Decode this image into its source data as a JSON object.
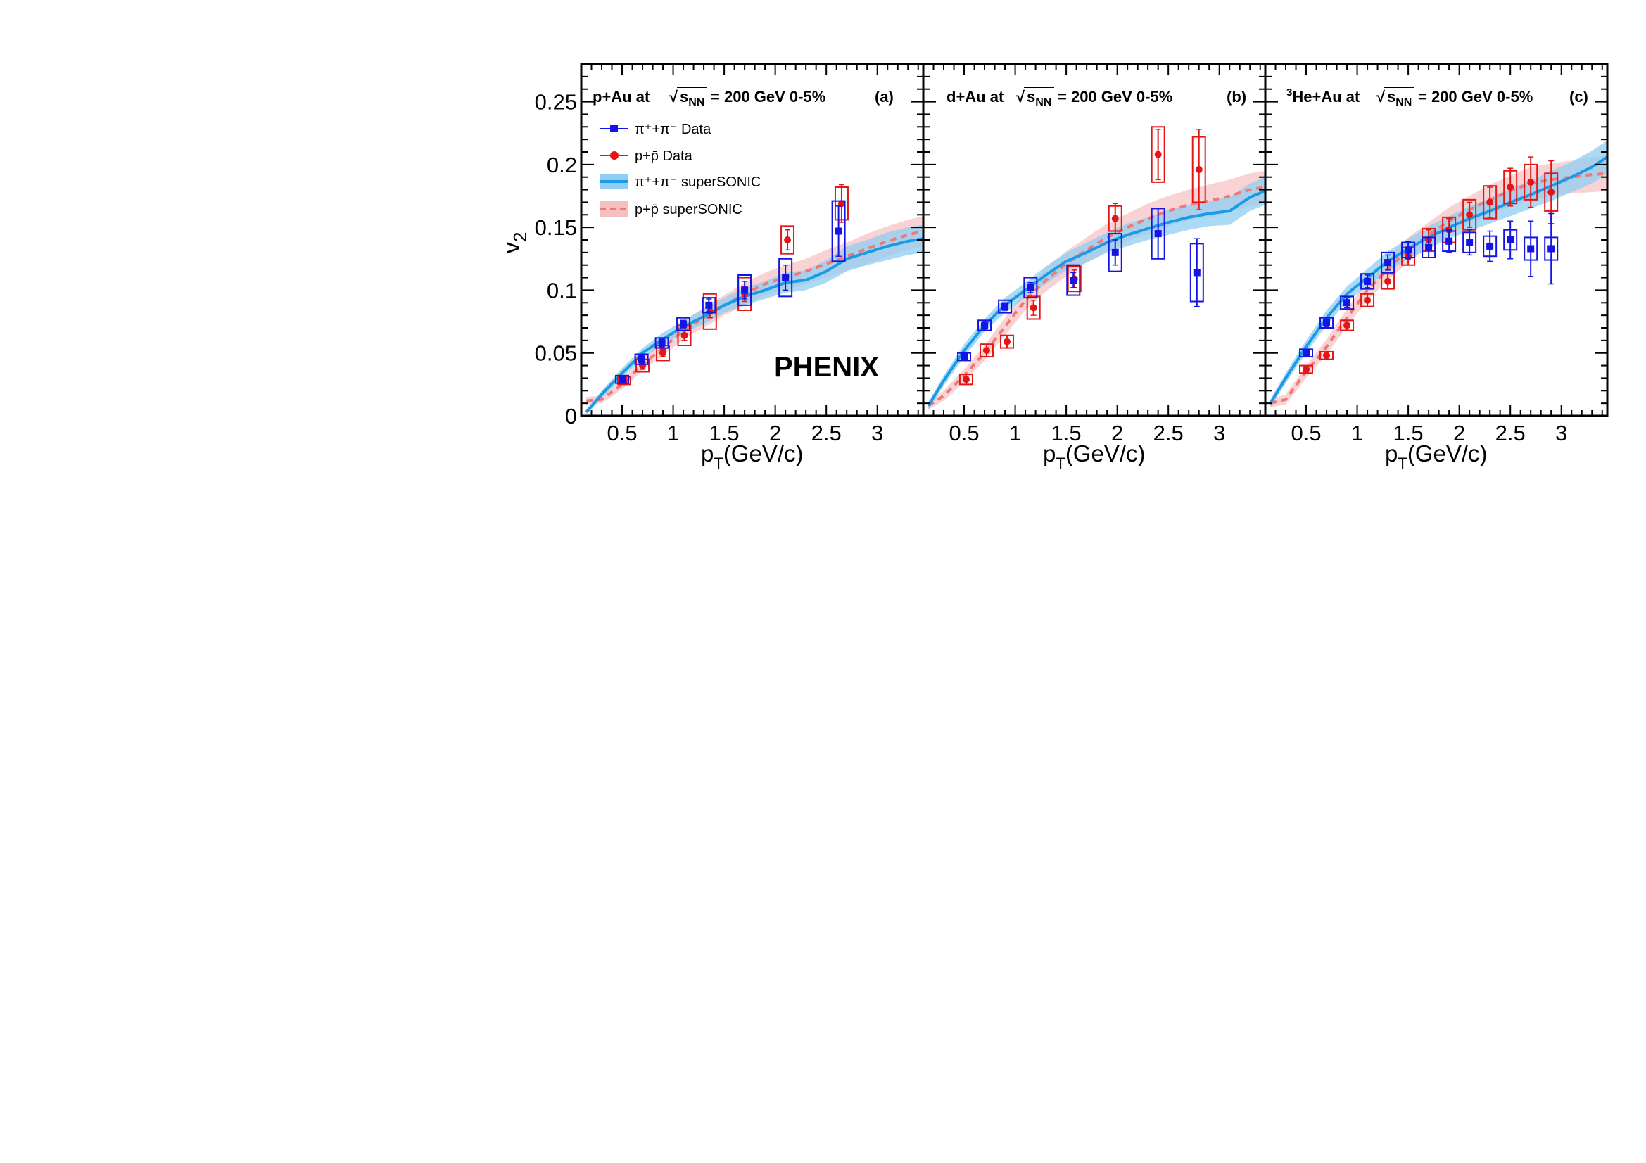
{
  "chart_data": {
    "type": "scatter",
    "ylabel": "v",
    "ylabel_sub": "2",
    "xlabel": "p",
    "xlabel_sub": "T",
    "xlabel_units": "(GeV/c)",
    "ylim": [
      0,
      0.28
    ],
    "yticks": [
      "0",
      "0.05",
      "0.1",
      "0.15",
      "0.2",
      "0.25"
    ],
    "xlim": [
      0.1,
      3.45
    ],
    "xticks": [
      "0.5",
      "1",
      "1.5",
      "2",
      "2.5",
      "3"
    ],
    "watermark": "PHENIX",
    "colors": {
      "pion_data": "#1414e6",
      "proton_data": "#e61414",
      "pion_model": "#1a9be8",
      "pion_band": "#8fcdf2",
      "proton_model": "#f07878",
      "proton_band": "#f7c0c0"
    },
    "legend": {
      "pion_data": "π⁺+π⁻ Data",
      "proton_data": "p+p̄ Data",
      "pion_model": "π⁺+π⁻ superSONIC",
      "proton_model": "p+p̄ superSONIC"
    },
    "panels": [
      {
        "title_prefix": "p+Au at",
        "sqrt_s": "s",
        "sqrt_s_sub": "NN",
        "title_suffix": "= 200 GeV 0-5%",
        "tag": "(a)",
        "pion_data": [
          {
            "x": 0.5,
            "y": 0.029,
            "err": 0.002,
            "sys": 0.003
          },
          {
            "x": 0.69,
            "y": 0.045,
            "err": 0.003,
            "sys": 0.004
          },
          {
            "x": 0.89,
            "y": 0.058,
            "err": 0.003,
            "sys": 0.004
          },
          {
            "x": 1.1,
            "y": 0.073,
            "err": 0.003,
            "sys": 0.005
          },
          {
            "x": 1.35,
            "y": 0.088,
            "err": 0.005,
            "sys": 0.006
          },
          {
            "x": 1.7,
            "y": 0.1,
            "err": 0.007,
            "sys": 0.012
          },
          {
            "x": 2.1,
            "y": 0.11,
            "err": 0.01,
            "sys": 0.015
          },
          {
            "x": 2.62,
            "y": 0.147,
            "err": 0.02,
            "sys": 0.024
          }
        ],
        "proton_data": [
          {
            "x": 0.52,
            "y": 0.028,
            "err": 0.002,
            "sys": 0.003
          },
          {
            "x": 0.7,
            "y": 0.04,
            "err": 0.003,
            "sys": 0.005
          },
          {
            "x": 0.9,
            "y": 0.05,
            "err": 0.003,
            "sys": 0.006
          },
          {
            "x": 1.11,
            "y": 0.064,
            "err": 0.004,
            "sys": 0.008
          },
          {
            "x": 1.36,
            "y": 0.083,
            "err": 0.005,
            "sys": 0.014
          },
          {
            "x": 1.7,
            "y": 0.097,
            "err": 0.006,
            "sys": 0.013
          },
          {
            "x": 2.12,
            "y": 0.14,
            "err": 0.008,
            "sys": 0.011
          },
          {
            "x": 2.65,
            "y": 0.169,
            "err": 0.015,
            "sys": 0.013
          }
        ]
      },
      {
        "title_prefix": "d+Au at",
        "sqrt_s": "s",
        "sqrt_s_sub": "NN",
        "title_suffix": "= 200 GeV 0-5%",
        "tag": "(b)",
        "pion_data": [
          {
            "x": 0.5,
            "y": 0.047,
            "err": 0.002,
            "sys": 0.003
          },
          {
            "x": 0.7,
            "y": 0.072,
            "err": 0.003,
            "sys": 0.004
          },
          {
            "x": 0.9,
            "y": 0.087,
            "err": 0.003,
            "sys": 0.005
          },
          {
            "x": 1.15,
            "y": 0.102,
            "err": 0.004,
            "sys": 0.008
          },
          {
            "x": 1.57,
            "y": 0.108,
            "err": 0.006,
            "sys": 0.012
          },
          {
            "x": 1.98,
            "y": 0.13,
            "err": 0.01,
            "sys": 0.015
          },
          {
            "x": 2.4,
            "y": 0.145,
            "err": 0.02,
            "sys": 0.02
          },
          {
            "x": 2.78,
            "y": 0.114,
            "err": 0.027,
            "sys": 0.023
          }
        ],
        "proton_data": [
          {
            "x": 0.52,
            "y": 0.029,
            "err": 0.004,
            "sys": 0.004
          },
          {
            "x": 0.72,
            "y": 0.052,
            "err": 0.005,
            "sys": 0.005
          },
          {
            "x": 0.92,
            "y": 0.059,
            "err": 0.005,
            "sys": 0.005
          },
          {
            "x": 1.18,
            "y": 0.086,
            "err": 0.006,
            "sys": 0.009
          },
          {
            "x": 1.58,
            "y": 0.109,
            "err": 0.007,
            "sys": 0.01
          },
          {
            "x": 1.98,
            "y": 0.157,
            "err": 0.012,
            "sys": 0.01
          },
          {
            "x": 2.4,
            "y": 0.208,
            "err": 0.02,
            "sys": 0.022
          },
          {
            "x": 2.8,
            "y": 0.196,
            "err": 0.032,
            "sys": 0.026
          }
        ]
      },
      {
        "title_prefix": "He+Au at",
        "title_sup": "3",
        "sqrt_s": "s",
        "sqrt_s_sub": "NN",
        "title_suffix": "= 200 GeV 0-5%",
        "tag": "(c)",
        "pion_data": [
          {
            "x": 0.5,
            "y": 0.05,
            "err": 0.002,
            "sys": 0.003
          },
          {
            "x": 0.7,
            "y": 0.074,
            "err": 0.003,
            "sys": 0.004
          },
          {
            "x": 0.9,
            "y": 0.09,
            "err": 0.004,
            "sys": 0.005
          },
          {
            "x": 1.1,
            "y": 0.107,
            "err": 0.005,
            "sys": 0.006
          },
          {
            "x": 1.3,
            "y": 0.122,
            "err": 0.006,
            "sys": 0.008
          },
          {
            "x": 1.5,
            "y": 0.132,
            "err": 0.007,
            "sys": 0.006
          },
          {
            "x": 1.7,
            "y": 0.134,
            "err": 0.008,
            "sys": 0.008
          },
          {
            "x": 1.9,
            "y": 0.139,
            "err": 0.009,
            "sys": 0.008
          },
          {
            "x": 2.1,
            "y": 0.138,
            "err": 0.01,
            "sys": 0.008
          },
          {
            "x": 2.3,
            "y": 0.135,
            "err": 0.012,
            "sys": 0.008
          },
          {
            "x": 2.5,
            "y": 0.14,
            "err": 0.015,
            "sys": 0.008
          },
          {
            "x": 2.7,
            "y": 0.133,
            "err": 0.022,
            "sys": 0.009
          },
          {
            "x": 2.9,
            "y": 0.133,
            "err": 0.028,
            "sys": 0.009
          }
        ],
        "proton_data": [
          {
            "x": 0.5,
            "y": 0.037,
            "err": 0.002,
            "sys": 0.003
          },
          {
            "x": 0.7,
            "y": 0.048,
            "err": 0.003,
            "sys": 0.003
          },
          {
            "x": 0.9,
            "y": 0.072,
            "err": 0.004,
            "sys": 0.004
          },
          {
            "x": 1.1,
            "y": 0.092,
            "err": 0.005,
            "sys": 0.005
          },
          {
            "x": 1.3,
            "y": 0.107,
            "err": 0.006,
            "sys": 0.006
          },
          {
            "x": 1.5,
            "y": 0.127,
            "err": 0.007,
            "sys": 0.007
          },
          {
            "x": 1.7,
            "y": 0.14,
            "err": 0.008,
            "sys": 0.009
          },
          {
            "x": 1.9,
            "y": 0.148,
            "err": 0.009,
            "sys": 0.01
          },
          {
            "x": 2.1,
            "y": 0.16,
            "err": 0.01,
            "sys": 0.012
          },
          {
            "x": 2.3,
            "y": 0.17,
            "err": 0.012,
            "sys": 0.013
          },
          {
            "x": 2.5,
            "y": 0.182,
            "err": 0.015,
            "sys": 0.013
          },
          {
            "x": 2.7,
            "y": 0.186,
            "err": 0.02,
            "sys": 0.014
          },
          {
            "x": 2.9,
            "y": 0.178,
            "err": 0.025,
            "sys": 0.015
          }
        ]
      }
    ],
    "pion_model": [
      {
        "x": 0.15,
        "y": 0.003,
        "band": 0.002
      },
      {
        "x": 0.3,
        "y": 0.017,
        "band": 0.003
      },
      {
        "x": 0.5,
        "y": 0.034,
        "band": 0.004
      },
      {
        "x": 0.7,
        "y": 0.05,
        "band": 0.004
      },
      {
        "x": 0.9,
        "y": 0.061,
        "band": 0.005
      },
      {
        "x": 1.1,
        "y": 0.071,
        "band": 0.005
      },
      {
        "x": 1.3,
        "y": 0.079,
        "band": 0.006
      },
      {
        "x": 1.5,
        "y": 0.088,
        "band": 0.006
      },
      {
        "x": 1.7,
        "y": 0.095,
        "band": 0.007
      },
      {
        "x": 1.9,
        "y": 0.1,
        "band": 0.007
      },
      {
        "x": 2.1,
        "y": 0.106,
        "band": 0.008
      },
      {
        "x": 2.3,
        "y": 0.108,
        "band": 0.008
      },
      {
        "x": 2.5,
        "y": 0.115,
        "band": 0.009
      },
      {
        "x": 2.7,
        "y": 0.125,
        "band": 0.01
      },
      {
        "x": 2.9,
        "y": 0.13,
        "band": 0.01
      },
      {
        "x": 3.1,
        "y": 0.135,
        "band": 0.011
      },
      {
        "x": 3.3,
        "y": 0.139,
        "band": 0.011
      },
      {
        "x": 3.45,
        "y": 0.141,
        "band": 0.011
      }
    ],
    "proton_model": [
      {
        "x": 0.15,
        "y": 0.012,
        "band": 0.003
      },
      {
        "x": 0.3,
        "y": 0.013,
        "band": 0.003
      },
      {
        "x": 0.5,
        "y": 0.025,
        "band": 0.004
      },
      {
        "x": 0.7,
        "y": 0.041,
        "band": 0.005
      },
      {
        "x": 0.9,
        "y": 0.054,
        "band": 0.006
      },
      {
        "x": 1.1,
        "y": 0.068,
        "band": 0.007
      },
      {
        "x": 1.3,
        "y": 0.078,
        "band": 0.008
      },
      {
        "x": 1.5,
        "y": 0.088,
        "band": 0.008
      },
      {
        "x": 1.7,
        "y": 0.097,
        "band": 0.009
      },
      {
        "x": 1.9,
        "y": 0.105,
        "band": 0.009
      },
      {
        "x": 2.1,
        "y": 0.11,
        "band": 0.01
      },
      {
        "x": 2.3,
        "y": 0.115,
        "band": 0.01
      },
      {
        "x": 2.5,
        "y": 0.121,
        "band": 0.011
      },
      {
        "x": 2.7,
        "y": 0.127,
        "band": 0.011
      },
      {
        "x": 2.9,
        "y": 0.133,
        "band": 0.012
      },
      {
        "x": 3.1,
        "y": 0.139,
        "band": 0.012
      },
      {
        "x": 3.3,
        "y": 0.144,
        "band": 0.012
      },
      {
        "x": 3.45,
        "y": 0.147,
        "band": 0.012
      }
    ],
    "pion_model_b": [
      {
        "x": 0.15,
        "y": 0.008,
        "band": 0.003
      },
      {
        "x": 0.3,
        "y": 0.028,
        "band": 0.004
      },
      {
        "x": 0.5,
        "y": 0.052,
        "band": 0.005
      },
      {
        "x": 0.7,
        "y": 0.072,
        "band": 0.005
      },
      {
        "x": 0.9,
        "y": 0.088,
        "band": 0.006
      },
      {
        "x": 1.1,
        "y": 0.1,
        "band": 0.006
      },
      {
        "x": 1.3,
        "y": 0.112,
        "band": 0.007
      },
      {
        "x": 1.5,
        "y": 0.123,
        "band": 0.007
      },
      {
        "x": 1.7,
        "y": 0.13,
        "band": 0.008
      },
      {
        "x": 1.9,
        "y": 0.138,
        "band": 0.008
      },
      {
        "x": 2.1,
        "y": 0.144,
        "band": 0.009
      },
      {
        "x": 2.3,
        "y": 0.149,
        "band": 0.009
      },
      {
        "x": 2.5,
        "y": 0.154,
        "band": 0.01
      },
      {
        "x": 2.7,
        "y": 0.158,
        "band": 0.01
      },
      {
        "x": 2.9,
        "y": 0.161,
        "band": 0.01
      },
      {
        "x": 3.1,
        "y": 0.163,
        "band": 0.011
      },
      {
        "x": 3.3,
        "y": 0.174,
        "band": 0.011
      },
      {
        "x": 3.45,
        "y": 0.179,
        "band": 0.011
      }
    ],
    "proton_model_b": [
      {
        "x": 0.15,
        "y": 0.008,
        "band": 0.003
      },
      {
        "x": 0.3,
        "y": 0.016,
        "band": 0.004
      },
      {
        "x": 0.5,
        "y": 0.032,
        "band": 0.005
      },
      {
        "x": 0.7,
        "y": 0.05,
        "band": 0.006
      },
      {
        "x": 0.9,
        "y": 0.071,
        "band": 0.007
      },
      {
        "x": 1.1,
        "y": 0.092,
        "band": 0.008
      },
      {
        "x": 1.3,
        "y": 0.108,
        "band": 0.009
      },
      {
        "x": 1.5,
        "y": 0.121,
        "band": 0.01
      },
      {
        "x": 1.7,
        "y": 0.132,
        "band": 0.01
      },
      {
        "x": 1.9,
        "y": 0.142,
        "band": 0.011
      },
      {
        "x": 2.1,
        "y": 0.15,
        "band": 0.011
      },
      {
        "x": 2.3,
        "y": 0.157,
        "band": 0.012
      },
      {
        "x": 2.5,
        "y": 0.163,
        "band": 0.012
      },
      {
        "x": 2.7,
        "y": 0.168,
        "band": 0.012
      },
      {
        "x": 2.9,
        "y": 0.171,
        "band": 0.013
      },
      {
        "x": 3.1,
        "y": 0.175,
        "band": 0.013
      },
      {
        "x": 3.3,
        "y": 0.18,
        "band": 0.013
      },
      {
        "x": 3.45,
        "y": 0.182,
        "band": 0.013
      }
    ],
    "pion_model_c": [
      {
        "x": 0.15,
        "y": 0.01,
        "band": 0.003
      },
      {
        "x": 0.3,
        "y": 0.03,
        "band": 0.004
      },
      {
        "x": 0.5,
        "y": 0.055,
        "band": 0.005
      },
      {
        "x": 0.7,
        "y": 0.078,
        "band": 0.006
      },
      {
        "x": 0.9,
        "y": 0.097,
        "band": 0.006
      },
      {
        "x": 1.1,
        "y": 0.11,
        "band": 0.007
      },
      {
        "x": 1.3,
        "y": 0.123,
        "band": 0.008
      },
      {
        "x": 1.5,
        "y": 0.133,
        "band": 0.008
      },
      {
        "x": 1.7,
        "y": 0.142,
        "band": 0.009
      },
      {
        "x": 1.9,
        "y": 0.15,
        "band": 0.009
      },
      {
        "x": 2.1,
        "y": 0.157,
        "band": 0.01
      },
      {
        "x": 2.3,
        "y": 0.163,
        "band": 0.01
      },
      {
        "x": 2.5,
        "y": 0.17,
        "band": 0.011
      },
      {
        "x": 2.7,
        "y": 0.176,
        "band": 0.011
      },
      {
        "x": 2.9,
        "y": 0.183,
        "band": 0.012
      },
      {
        "x": 3.1,
        "y": 0.19,
        "band": 0.012
      },
      {
        "x": 3.3,
        "y": 0.198,
        "band": 0.013
      },
      {
        "x": 3.45,
        "y": 0.206,
        "band": 0.013
      }
    ],
    "proton_model_c": [
      {
        "x": 0.15,
        "y": 0.01,
        "band": 0.003
      },
      {
        "x": 0.3,
        "y": 0.013,
        "band": 0.004
      },
      {
        "x": 0.5,
        "y": 0.035,
        "band": 0.005
      },
      {
        "x": 0.7,
        "y": 0.055,
        "band": 0.006
      },
      {
        "x": 0.9,
        "y": 0.078,
        "band": 0.007
      },
      {
        "x": 1.1,
        "y": 0.1,
        "band": 0.008
      },
      {
        "x": 1.3,
        "y": 0.117,
        "band": 0.009
      },
      {
        "x": 1.5,
        "y": 0.132,
        "band": 0.01
      },
      {
        "x": 1.7,
        "y": 0.144,
        "band": 0.01
      },
      {
        "x": 1.9,
        "y": 0.155,
        "band": 0.011
      },
      {
        "x": 2.1,
        "y": 0.164,
        "band": 0.011
      },
      {
        "x": 2.3,
        "y": 0.172,
        "band": 0.012
      },
      {
        "x": 2.5,
        "y": 0.179,
        "band": 0.012
      },
      {
        "x": 2.7,
        "y": 0.185,
        "band": 0.013
      },
      {
        "x": 2.9,
        "y": 0.188,
        "band": 0.013
      },
      {
        "x": 3.1,
        "y": 0.19,
        "band": 0.013
      },
      {
        "x": 3.3,
        "y": 0.192,
        "band": 0.014
      },
      {
        "x": 3.45,
        "y": 0.193,
        "band": 0.014
      }
    ]
  }
}
